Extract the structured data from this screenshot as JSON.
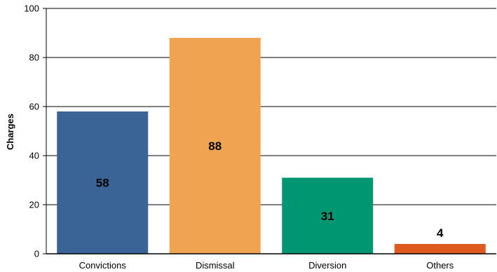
{
  "chart_data": {
    "type": "bar",
    "categories": [
      "Convictions",
      "Dismissal",
      "Diversion",
      "Others"
    ],
    "values": [
      58,
      88,
      31,
      4
    ],
    "colors": [
      "#3a6495",
      "#f0a452",
      "#009672",
      "#e05a20"
    ],
    "title": "",
    "xlabel": "",
    "ylabel": "Charges",
    "ylim": [
      0,
      100
    ],
    "yticks": [
      0,
      20,
      40,
      60,
      80,
      100
    ],
    "grid": true,
    "legend": "none"
  }
}
